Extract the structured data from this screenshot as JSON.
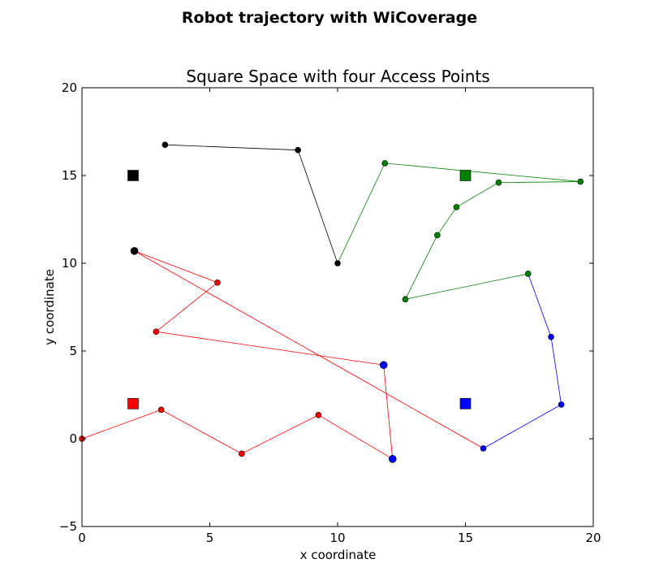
{
  "chart_data": {
    "type": "scatter",
    "suptitle": "Robot trajectory with WiCoverage",
    "title": "Square Space with four Access Points",
    "xlabel": "x coordinate",
    "ylabel": "y coordinate",
    "xlim": [
      0,
      20
    ],
    "ylim": [
      -5,
      20
    ],
    "xticks": [
      0,
      5,
      10,
      15,
      20
    ],
    "xtick_labels": [
      "0",
      "5",
      "10",
      "15",
      "20"
    ],
    "yticks": [
      -5,
      0,
      5,
      10,
      15,
      20
    ],
    "ytick_labels": [
      "−5",
      "0",
      "5",
      "10",
      "15",
      "20"
    ],
    "grid": false,
    "access_points": [
      {
        "x": 2,
        "y": 15,
        "color": "#000000"
      },
      {
        "x": 15,
        "y": 15,
        "color": "#008000"
      },
      {
        "x": 2,
        "y": 2,
        "color": "#ff0000"
      },
      {
        "x": 15,
        "y": 2,
        "color": "#0000ff"
      }
    ],
    "segments": [
      {
        "color": "#ff0000",
        "points": [
          [
            0,
            0
          ],
          [
            3.1,
            1.65
          ],
          [
            6.25,
            -0.85
          ],
          [
            9.25,
            1.35
          ],
          [
            12.15,
            -1.15
          ]
        ]
      },
      {
        "color": "#ff0000",
        "points": [
          [
            12.15,
            -1.15
          ],
          [
            11.8,
            4.2
          ]
        ]
      },
      {
        "color": "#ff0000",
        "points": [
          [
            11.8,
            4.2
          ],
          [
            2.9,
            6.1
          ],
          [
            5.3,
            8.9
          ],
          [
            2.05,
            10.7
          ]
        ]
      },
      {
        "color": "#ff0000",
        "points": [
          [
            2.05,
            10.7
          ],
          [
            15.7,
            -0.55
          ]
        ]
      },
      {
        "color": "#0000ff",
        "points": [
          [
            15.7,
            -0.55
          ],
          [
            18.75,
            1.95
          ],
          [
            18.35,
            5.8
          ],
          [
            17.45,
            9.4
          ]
        ]
      },
      {
        "color": "#008000",
        "points": [
          [
            17.45,
            9.4
          ],
          [
            12.65,
            7.95
          ],
          [
            13.9,
            11.6
          ],
          [
            14.65,
            13.2
          ],
          [
            16.3,
            14.6
          ],
          [
            19.5,
            14.65
          ],
          [
            11.85,
            15.7
          ],
          [
            10.0,
            10.0
          ]
        ]
      },
      {
        "color": "#000000",
        "points": [
          [
            10.0,
            10.0
          ],
          [
            8.45,
            16.45
          ],
          [
            3.25,
            16.75
          ]
        ]
      }
    ],
    "points": [
      {
        "x": 0,
        "y": 0,
        "color": "#ff0000",
        "r": 3.5
      },
      {
        "x": 3.1,
        "y": 1.65,
        "color": "#ff0000",
        "r": 3.5
      },
      {
        "x": 6.25,
        "y": -0.85,
        "color": "#ff0000",
        "r": 3.5
      },
      {
        "x": 9.25,
        "y": 1.35,
        "color": "#ff0000",
        "r": 3.5
      },
      {
        "x": 12.15,
        "y": -1.15,
        "color": "#0000ff",
        "r": 4.5
      },
      {
        "x": 11.8,
        "y": 4.2,
        "color": "#0000ff",
        "r": 4.5
      },
      {
        "x": 2.9,
        "y": 6.1,
        "color": "#ff0000",
        "r": 3.5
      },
      {
        "x": 5.3,
        "y": 8.9,
        "color": "#ff0000",
        "r": 3.5
      },
      {
        "x": 2.05,
        "y": 10.7,
        "color": "#000000",
        "r": 4.5
      },
      {
        "x": 15.7,
        "y": -0.55,
        "color": "#0000ff",
        "r": 3.5
      },
      {
        "x": 18.75,
        "y": 1.95,
        "color": "#0000ff",
        "r": 3.5
      },
      {
        "x": 18.35,
        "y": 5.8,
        "color": "#0000ff",
        "r": 3.5
      },
      {
        "x": 17.45,
        "y": 9.4,
        "color": "#008000",
        "r": 3.5
      },
      {
        "x": 12.65,
        "y": 7.95,
        "color": "#008000",
        "r": 3.5
      },
      {
        "x": 13.9,
        "y": 11.6,
        "color": "#008000",
        "r": 3.5
      },
      {
        "x": 14.65,
        "y": 13.2,
        "color": "#008000",
        "r": 3.5
      },
      {
        "x": 16.3,
        "y": 14.6,
        "color": "#008000",
        "r": 3.5
      },
      {
        "x": 19.5,
        "y": 14.65,
        "color": "#008000",
        "r": 3.5
      },
      {
        "x": 11.85,
        "y": 15.7,
        "color": "#008000",
        "r": 3.5
      },
      {
        "x": 10.0,
        "y": 10.0,
        "color": "#000000",
        "r": 3.5
      },
      {
        "x": 8.45,
        "y": 16.45,
        "color": "#000000",
        "r": 3.5
      },
      {
        "x": 3.25,
        "y": 16.75,
        "color": "#000000",
        "r": 3.5
      }
    ]
  }
}
